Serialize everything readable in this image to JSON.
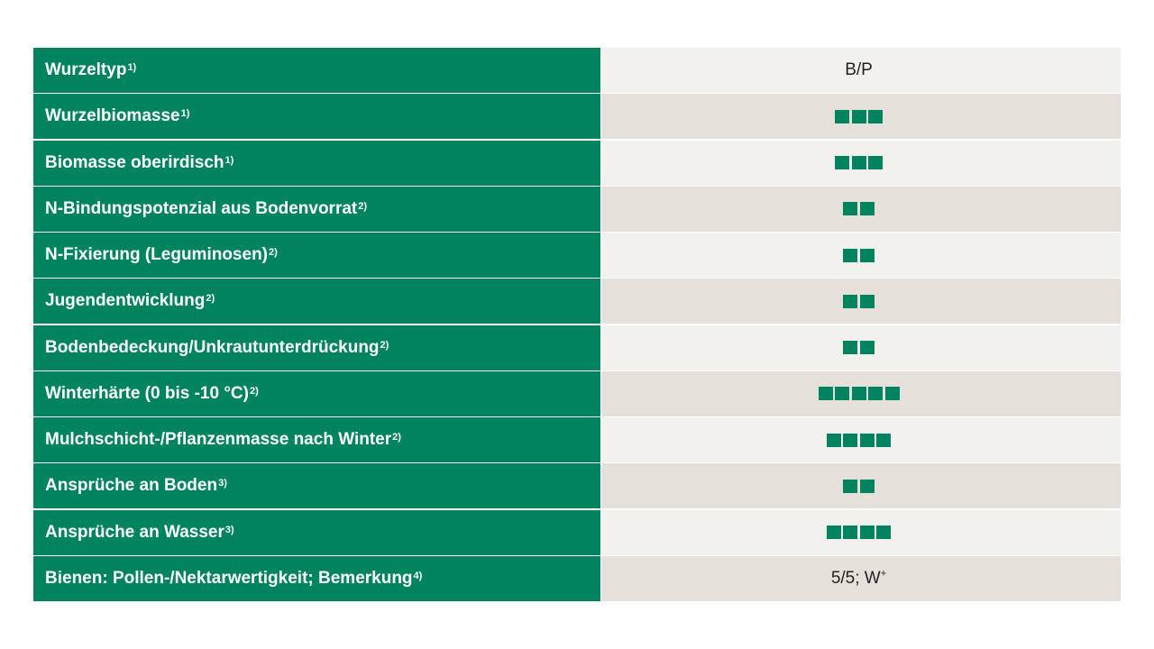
{
  "colors": {
    "accent": "#00845f",
    "row_light": "#f2f1ed",
    "row_dark": "#e5e1da"
  },
  "rows": [
    {
      "label": "Wurzeltyp",
      "note": "1)",
      "text": "B/P"
    },
    {
      "label": "Wurzelbiomasse",
      "note": "1)",
      "rating": 3
    },
    {
      "label": "Biomasse oberirdisch",
      "note": "1)",
      "rating": 3
    },
    {
      "label": "N-Bindungspotenzial aus Bodenvorrat",
      "note": "2)",
      "rating": 2
    },
    {
      "label": "N-Fixierung (Leguminosen)",
      "note": "2)",
      "rating": 2
    },
    {
      "label": "Jugendentwicklung",
      "note": "2)",
      "rating": 2
    },
    {
      "label": "Bodenbedeckung/Unkrautunterdrückung",
      "note": "2)",
      "rating": 2
    },
    {
      "label": "Winterhärte (0 bis -10 °C)",
      "note": "2)",
      "rating": 5
    },
    {
      "label": "Mulchschicht-/Pflanzenmasse nach Winter",
      "note": "2)",
      "rating": 4
    },
    {
      "label": "Ansprüche an Boden",
      "note": "3)",
      "rating": 2
    },
    {
      "label": "Ansprüche an Wasser",
      "note": "3)",
      "rating": 4
    },
    {
      "label": "Bienen: Pollen-/Nektarwertigkeit; Bemerkung",
      "note": "4)",
      "text": "5/5; W",
      "text_sup": "+"
    }
  ]
}
